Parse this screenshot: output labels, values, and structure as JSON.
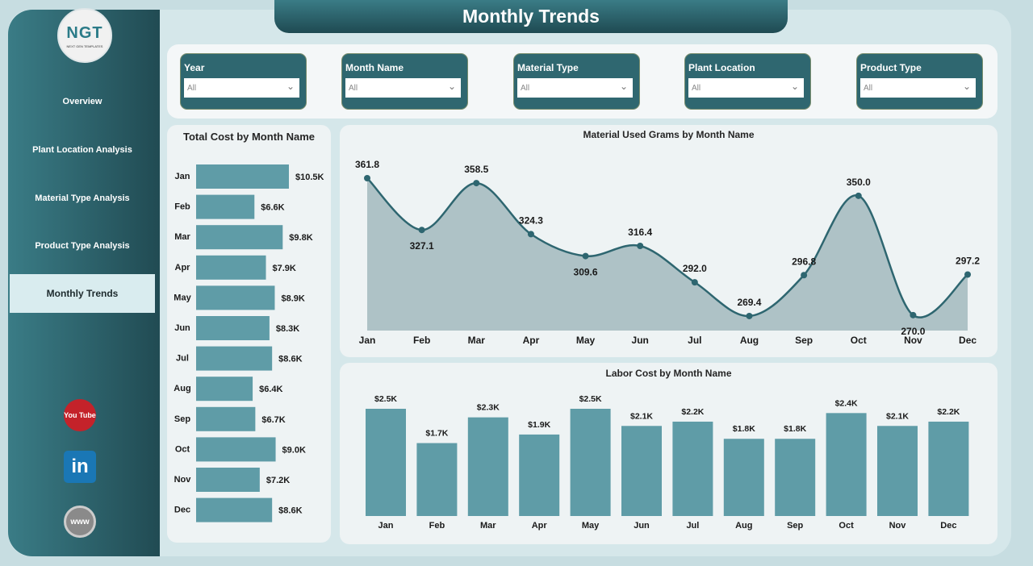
{
  "header": {
    "title": "Monthly Trends"
  },
  "logo": {
    "text": "NGT",
    "tagline": "NEXT GEN TEMPLATES"
  },
  "sidebar": {
    "items": [
      {
        "label": "Overview"
      },
      {
        "label": "Plant Location Analysis"
      },
      {
        "label": "Material Type Analysis"
      },
      {
        "label": "Product Type Analysis"
      },
      {
        "label": "Monthly Trends",
        "active": true
      }
    ],
    "social": [
      {
        "icon": "youtube-icon",
        "label": "You Tube"
      },
      {
        "icon": "linkedin-icon",
        "label": "in"
      },
      {
        "icon": "globe-icon",
        "label": "www"
      }
    ]
  },
  "filters": [
    {
      "label": "Year",
      "value": "All"
    },
    {
      "label": "Month Name",
      "value": "All"
    },
    {
      "label": "Material Type",
      "value": "All"
    },
    {
      "label": "Plant Location",
      "value": "All"
    },
    {
      "label": "Product Type",
      "value": "All"
    }
  ],
  "colors": {
    "accent": "#2f6770",
    "bar": "#5f9ca7",
    "area": "#a6bcc1",
    "line": "#2e6670"
  },
  "chart_data": [
    {
      "type": "bar",
      "orientation": "horizontal",
      "title": "Total Cost by Month Name",
      "categories": [
        "Jan",
        "Feb",
        "Mar",
        "Apr",
        "May",
        "Jun",
        "Jul",
        "Aug",
        "Sep",
        "Oct",
        "Nov",
        "Dec"
      ],
      "values": [
        10.5,
        6.6,
        9.8,
        7.9,
        8.9,
        8.3,
        8.6,
        6.4,
        6.7,
        9.0,
        7.2,
        8.6
      ],
      "labels": [
        "$10.5K",
        "$6.6K",
        "$9.8K",
        "$7.9K",
        "$8.9K",
        "$8.3K",
        "$8.6K",
        "$6.4K",
        "$6.7K",
        "$9.0K",
        "$7.2K",
        "$8.6K"
      ],
      "unit": "$K"
    },
    {
      "type": "area",
      "title": "Material Used Grams by Month Name",
      "categories": [
        "Jan",
        "Feb",
        "Mar",
        "Apr",
        "May",
        "Jun",
        "Jul",
        "Aug",
        "Sep",
        "Oct",
        "Nov",
        "Dec"
      ],
      "values": [
        361.8,
        327.1,
        358.5,
        324.3,
        309.6,
        316.4,
        292.0,
        269.4,
        296.8,
        350.0,
        270.0,
        297.2
      ],
      "labels": [
        "361.8",
        "327.1",
        "358.5",
        "324.3",
        "309.6",
        "316.4",
        "292.0",
        "269.4",
        "296.8",
        "350.0",
        "270.0",
        "297.2"
      ]
    },
    {
      "type": "bar",
      "title": "Labor Cost by Month Name",
      "categories": [
        "Jan",
        "Feb",
        "Mar",
        "Apr",
        "May",
        "Jun",
        "Jul",
        "Aug",
        "Sep",
        "Oct",
        "Nov",
        "Dec"
      ],
      "values": [
        2.5,
        1.7,
        2.3,
        1.9,
        2.5,
        2.1,
        2.2,
        1.8,
        1.8,
        2.4,
        2.1,
        2.2
      ],
      "labels": [
        "$2.5K",
        "$1.7K",
        "$2.3K",
        "$1.9K",
        "$2.5K",
        "$2.1K",
        "$2.2K",
        "$1.8K",
        "$1.8K",
        "$2.4K",
        "$2.1K",
        "$2.2K"
      ],
      "unit": "$K"
    }
  ]
}
